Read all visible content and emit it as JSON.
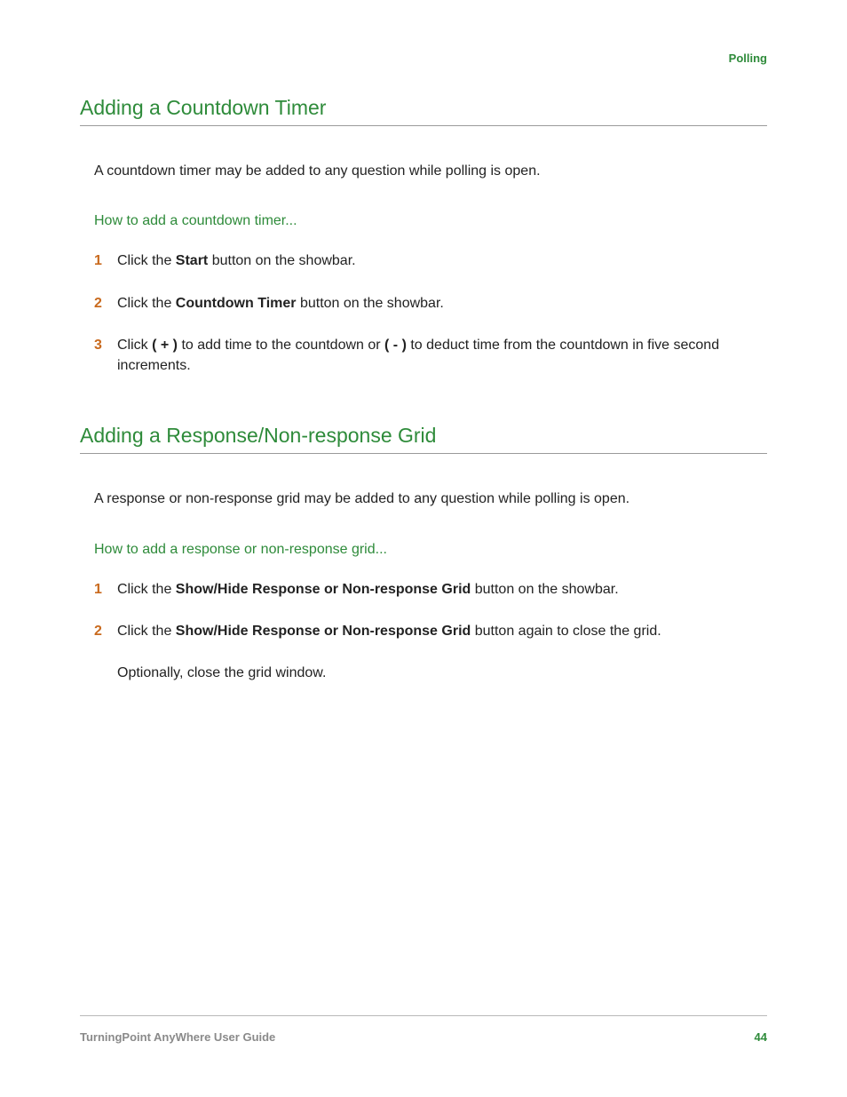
{
  "colors": {
    "accent_green": "#2e8b3a",
    "step_number": "#c96a1e",
    "body_text": "#222222",
    "rule": "#9a9a9a",
    "footer_rule": "#b8b8b8",
    "footer_text": "#8a8a8a",
    "background": "#ffffff"
  },
  "typography": {
    "section_title_pt": 23,
    "body_pt": 16,
    "header_label_pt": 13,
    "footer_pt": 13
  },
  "header": {
    "label": "Polling"
  },
  "sections": [
    {
      "title": "Adding a Countdown Timer",
      "intro": "A countdown timer may be added to any question while polling is open.",
      "howto": "How to add a countdown timer...",
      "steps": [
        {
          "num": "1",
          "parts": [
            "Click the ",
            {
              "b": "Start"
            },
            " button on the showbar."
          ]
        },
        {
          "num": "2",
          "parts": [
            "Click the ",
            {
              "b": "Countdown Timer"
            },
            " button on the showbar."
          ]
        },
        {
          "num": "3",
          "parts": [
            "Click ",
            {
              "b": "( + )"
            },
            " to add time to the countdown or ",
            {
              "b": "( - )"
            },
            " to deduct time from the countdown in five second increments."
          ]
        }
      ]
    },
    {
      "title": "Adding a Response/Non-response Grid",
      "intro": "A response or non-response grid may be added to any question while polling is open.",
      "howto": "How to add a response or non-response grid...",
      "steps": [
        {
          "num": "1",
          "parts": [
            "Click the ",
            {
              "b": "Show/Hide Response or Non-response Grid"
            },
            " button on the showbar."
          ]
        },
        {
          "num": "2",
          "parts": [
            "Click the ",
            {
              "b": "Show/Hide Response or Non-response Grid"
            },
            " button again to close the grid."
          ]
        }
      ],
      "optional": "Optionally, close the grid window."
    }
  ],
  "footer": {
    "guide": "TurningPoint AnyWhere User Guide",
    "page": "44"
  }
}
